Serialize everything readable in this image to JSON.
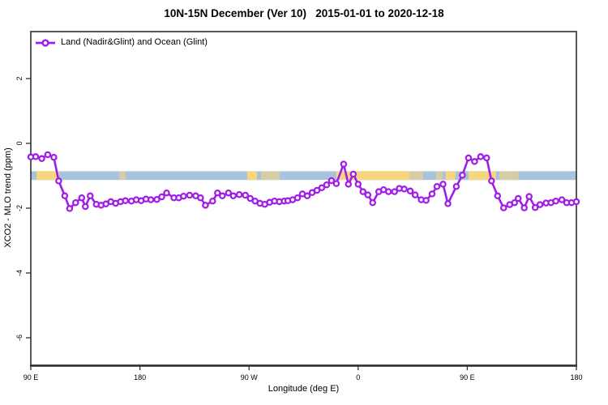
{
  "colors": {
    "series_line": "#A01DE8",
    "marker_fill": "#FFFFFF",
    "band_ocean": "#AAC3DC",
    "band_land": "#F6D67E",
    "frame": "#2E2E2E",
    "text": "#000000"
  },
  "chart_data": {
    "type": "line",
    "title": "10N-15N December (Ver 10)   2015-01-01 to 2020-12-18",
    "xlabel": "Longitude (deg E)",
    "ylabel": "XCO2 - MLO trend (ppm)",
    "legend_position": "top-left-inside",
    "grid": false,
    "xlim": [
      90,
      540
    ],
    "ylim": [
      -6.85,
      3.45
    ],
    "x_ticks": [
      {
        "pos": 90,
        "label": "90 E"
      },
      {
        "pos": 180,
        "label": "180"
      },
      {
        "pos": 270,
        "label": "90 W"
      },
      {
        "pos": 360,
        "label": "0"
      },
      {
        "pos": 450,
        "label": "90 E"
      },
      {
        "pos": 540,
        "label": "180"
      }
    ],
    "y_ticks": [
      {
        "pos": 2,
        "label": "2"
      },
      {
        "pos": 0,
        "label": "0"
      },
      {
        "pos": -2,
        "label": "-2"
      },
      {
        "pos": -4,
        "label": "-4"
      },
      {
        "pos": -6,
        "label": "-6"
      }
    ],
    "reference_band": {
      "description": "horizontal strip near -1 ppm: ocean (blue) with land (yellow) longitude segments",
      "y_range": [
        -0.86,
        -1.13
      ],
      "land_segments_solid": [
        [
          94.7,
          113.4
        ],
        [
          268.5,
          276.5
        ],
        [
          342.0,
          402.2
        ],
        [
          432.2,
          440.2
        ],
        [
          451.0,
          473.7
        ]
      ],
      "land_segments_patchy": [
        [
          162.9,
          168.2
        ],
        [
          279.9,
          295.2
        ],
        [
          402.2,
          413.6
        ],
        [
          424.2,
          429.6
        ],
        [
          476.4,
          492.4
        ]
      ]
    },
    "series": [
      {
        "name": "Land (Nadir&Glint) and Ocean (Glint)",
        "marker": "open-circle",
        "points": [
          [
            90,
            -0.42
          ],
          [
            94,
            -0.41
          ],
          [
            99,
            -0.47
          ],
          [
            104,
            -0.35
          ],
          [
            109,
            -0.43
          ],
          [
            113,
            -1.16
          ],
          [
            118,
            -1.62
          ],
          [
            122,
            -2.01
          ],
          [
            127,
            -1.83
          ],
          [
            132,
            -1.68
          ],
          [
            135,
            -1.95
          ],
          [
            139,
            -1.62
          ],
          [
            144,
            -1.88
          ],
          [
            148,
            -1.91
          ],
          [
            152,
            -1.87
          ],
          [
            156,
            -1.8
          ],
          [
            160,
            -1.85
          ],
          [
            164,
            -1.8
          ],
          [
            168,
            -1.77
          ],
          [
            173,
            -1.78
          ],
          [
            177,
            -1.74
          ],
          [
            181,
            -1.77
          ],
          [
            185,
            -1.72
          ],
          [
            189,
            -1.74
          ],
          [
            194,
            -1.73
          ],
          [
            198,
            -1.65
          ],
          [
            202,
            -1.53
          ],
          [
            208,
            -1.68
          ],
          [
            212,
            -1.68
          ],
          [
            216,
            -1.63
          ],
          [
            221,
            -1.6
          ],
          [
            226,
            -1.62
          ],
          [
            230,
            -1.68
          ],
          [
            234,
            -1.91
          ],
          [
            240,
            -1.78
          ],
          [
            244,
            -1.53
          ],
          [
            248,
            -1.62
          ],
          [
            253,
            -1.53
          ],
          [
            257,
            -1.62
          ],
          [
            262,
            -1.58
          ],
          [
            267,
            -1.6
          ],
          [
            271,
            -1.7
          ],
          [
            275,
            -1.78
          ],
          [
            279,
            -1.85
          ],
          [
            283,
            -1.88
          ],
          [
            287,
            -1.82
          ],
          [
            291,
            -1.78
          ],
          [
            295,
            -1.8
          ],
          [
            299,
            -1.78
          ],
          [
            302,
            -1.77
          ],
          [
            306,
            -1.74
          ],
          [
            310,
            -1.68
          ],
          [
            314,
            -1.56
          ],
          [
            318,
            -1.62
          ],
          [
            322,
            -1.52
          ],
          [
            326,
            -1.45
          ],
          [
            330,
            -1.37
          ],
          [
            334,
            -1.28
          ],
          [
            338,
            -1.15
          ],
          [
            342,
            -1.24
          ],
          [
            348,
            -0.64
          ],
          [
            352,
            -1.26
          ],
          [
            356,
            -0.95
          ],
          [
            360,
            -1.26
          ],
          [
            364,
            -1.49
          ],
          [
            368,
            -1.59
          ],
          [
            372,
            -1.83
          ],
          [
            377,
            -1.49
          ],
          [
            381,
            -1.43
          ],
          [
            385,
            -1.49
          ],
          [
            390,
            -1.49
          ],
          [
            394,
            -1.39
          ],
          [
            398,
            -1.41
          ],
          [
            403,
            -1.47
          ],
          [
            407,
            -1.59
          ],
          [
            412,
            -1.74
          ],
          [
            416,
            -1.76
          ],
          [
            421,
            -1.56
          ],
          [
            425,
            -1.33
          ],
          [
            430,
            -1.26
          ],
          [
            434,
            -1.86
          ],
          [
            441,
            -1.33
          ],
          [
            446,
            -0.98
          ],
          [
            451,
            -0.45
          ],
          [
            456,
            -0.56
          ],
          [
            461,
            -0.41
          ],
          [
            466,
            -0.45
          ],
          [
            470,
            -1.16
          ],
          [
            475,
            -1.62
          ],
          [
            480,
            -1.99
          ],
          [
            485,
            -1.89
          ],
          [
            489,
            -1.83
          ],
          [
            492,
            -1.7
          ],
          [
            497,
            -1.99
          ],
          [
            501,
            -1.64
          ],
          [
            506,
            -1.98
          ],
          [
            510,
            -1.89
          ],
          [
            515,
            -1.84
          ],
          [
            519,
            -1.83
          ],
          [
            523,
            -1.78
          ],
          [
            528,
            -1.74
          ],
          [
            532,
            -1.83
          ],
          [
            536,
            -1.83
          ],
          [
            540,
            -1.8
          ]
        ]
      }
    ]
  }
}
